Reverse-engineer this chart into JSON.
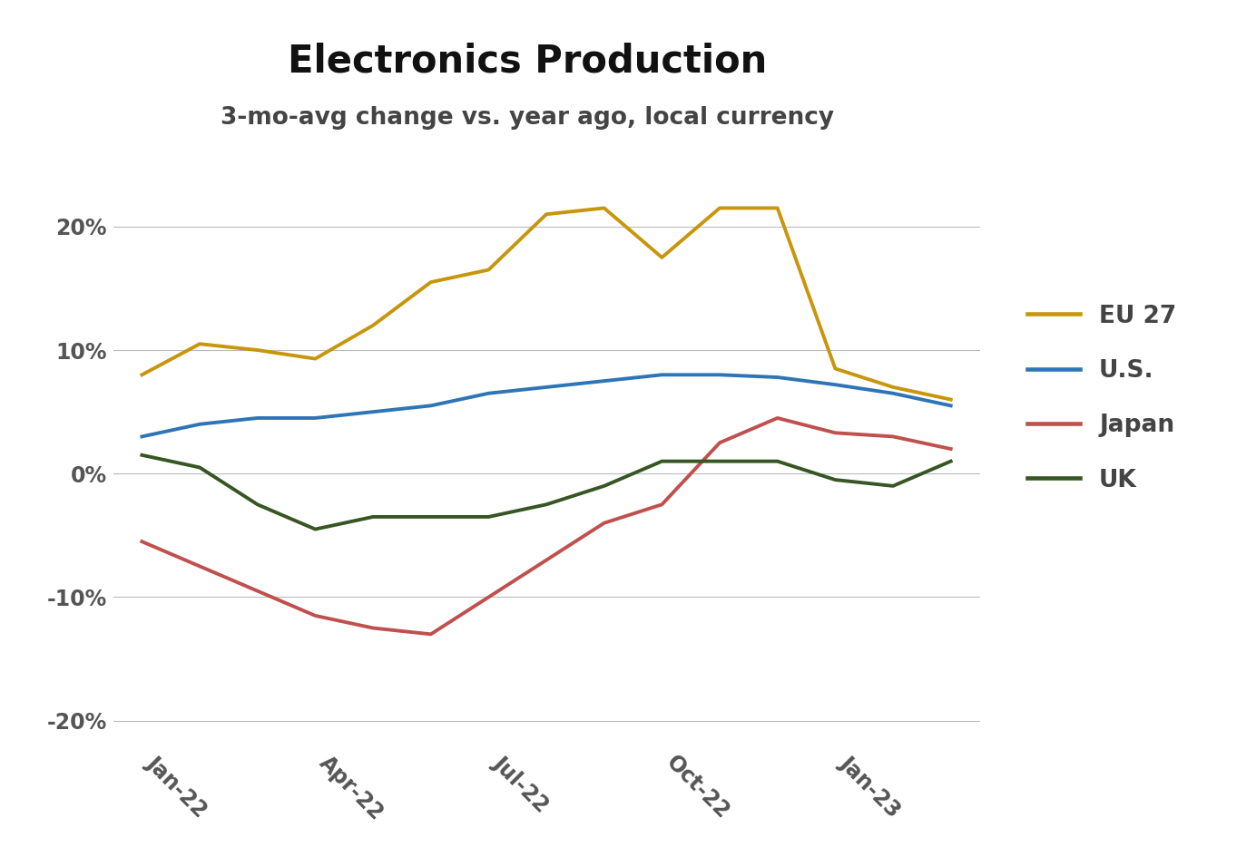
{
  "title": "Electronics Production",
  "subtitle": "3-mo-avg change vs. year ago, local currency",
  "x_tick_labels": [
    "Jan-22",
    "Apr-22",
    "Jul-22",
    "Oct-22",
    "Jan-23"
  ],
  "x_tick_positions": [
    0,
    3,
    6,
    9,
    12
  ],
  "n_points": 15,
  "series": [
    {
      "name": "EU 27",
      "color": "#C8960C",
      "values": [
        0.08,
        0.105,
        0.1,
        0.093,
        0.12,
        0.155,
        0.165,
        0.21,
        0.215,
        0.175,
        0.215,
        0.215,
        0.085,
        0.07,
        0.06
      ]
    },
    {
      "name": "U.S.",
      "color": "#2E75B6",
      "values": [
        0.03,
        0.04,
        0.045,
        0.045,
        0.05,
        0.055,
        0.065,
        0.07,
        0.075,
        0.08,
        0.08,
        0.078,
        0.072,
        0.065,
        0.055
      ]
    },
    {
      "name": "Japan",
      "color": "#C0504D",
      "values": [
        -0.055,
        -0.075,
        -0.095,
        -0.115,
        -0.125,
        -0.13,
        -0.1,
        -0.07,
        -0.04,
        -0.025,
        0.025,
        0.045,
        0.033,
        0.03,
        0.02
      ]
    },
    {
      "name": "UK",
      "color": "#375623",
      "values": [
        0.015,
        0.005,
        -0.025,
        -0.045,
        -0.035,
        -0.035,
        -0.035,
        -0.025,
        -0.01,
        0.01,
        0.01,
        0.01,
        -0.005,
        -0.01,
        0.01
      ]
    }
  ],
  "ylim": [
    -0.22,
    0.26
  ],
  "yticks": [
    -0.2,
    -0.1,
    0.0,
    0.1,
    0.2
  ],
  "ytick_labels": [
    "-20%",
    "-10%",
    "0%",
    "10%",
    "20%"
  ],
  "background_color": "#FFFFFF",
  "grid_color": "#BBBBBB",
  "title_fontsize": 30,
  "subtitle_fontsize": 19,
  "tick_fontsize": 17,
  "legend_fontsize": 19,
  "line_width": 2.8
}
